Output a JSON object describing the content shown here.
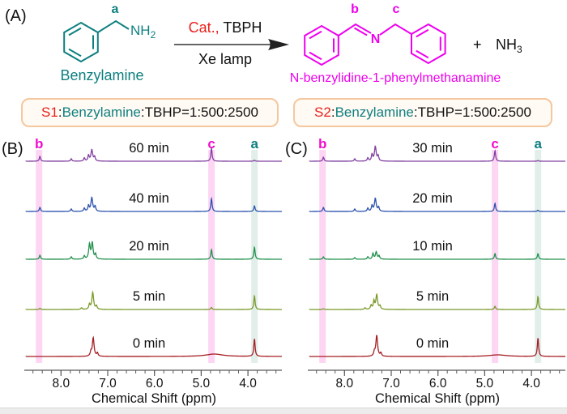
{
  "panel_a": {
    "label": "(A)",
    "reactant": {
      "proton_label": "a",
      "amine_main": "NH",
      "amine_sub": "2",
      "name": "Benzylamine"
    },
    "arrow": {
      "catalyst": "Cat.,",
      "reagent": " TBPH",
      "condition": "Xe lamp"
    },
    "product": {
      "label_b": "b",
      "label_c": "c",
      "nitrogen": "N",
      "name": "N-benzylidine-1-phenylmethanamine"
    },
    "byproduct": {
      "plus": "+",
      "formula_main": "NH",
      "formula_sub": "3"
    }
  },
  "legend_boxes": [
    {
      "sample": "S1",
      "colon": ":",
      "reagent": "Benzylamine",
      "ratio": " :TBHP=1:500:2500"
    },
    {
      "sample": "S2",
      "colon": ":",
      "reagent": "Benzylamine",
      "ratio": " :TBHP=1:500:2500"
    }
  ],
  "colors": {
    "red": "#e8211d",
    "teal": "#0e7f80",
    "magenta": "#ee00ee",
    "marker_magenta": "#f20ccb",
    "band_pink": "#f589dd",
    "band_teal": "#a8cdc3",
    "box_border": "#f5c79e",
    "box_fill": "#fffaf3",
    "axis": "#595959"
  },
  "chart_data": [
    {
      "type": "line",
      "panel_label": "(B)",
      "xlabel": "Chemical Shift (ppm)",
      "x_ticks": [
        8.0,
        7.0,
        6.0,
        5.0,
        4.0
      ],
      "x_range_ppm": [
        8.75,
        3.27
      ],
      "x_axis_reversed": true,
      "grid": false,
      "legend_position": "none",
      "marker_columns": [
        {
          "label": "b",
          "ppm": 8.47,
          "color": "#f20ccb",
          "band": "#f589dd"
        },
        {
          "label": "c",
          "ppm": 4.78,
          "color": "#f20ccb",
          "band": "#f589dd"
        },
        {
          "label": "a",
          "ppm": 3.86,
          "color": "#0e7f80",
          "band": "#a8cdc3"
        }
      ],
      "series": [
        {
          "name": "60 min",
          "color": "#8040a0",
          "peaks": [
            [
              8.45,
              6
            ],
            [
              7.78,
              3
            ],
            [
              7.5,
              4
            ],
            [
              7.41,
              7
            ],
            [
              7.34,
              14,
              0.022
            ],
            [
              7.28,
              5
            ],
            [
              4.78,
              16
            ],
            [
              3.86,
              1.2
            ]
          ]
        },
        {
          "name": "40 min",
          "color": "#2b52ad",
          "peaks": [
            [
              8.45,
              5
            ],
            [
              7.78,
              3
            ],
            [
              7.5,
              4
            ],
            [
              7.41,
              7
            ],
            [
              7.34,
              17,
              0.022
            ],
            [
              7.27,
              6
            ],
            [
              4.78,
              16
            ],
            [
              3.86,
              7
            ]
          ]
        },
        {
          "name": "20 min",
          "color": "#22914d",
          "peaks": [
            [
              8.45,
              5
            ],
            [
              7.78,
              3
            ],
            [
              7.5,
              4
            ],
            [
              7.39,
              18,
              0.02
            ],
            [
              7.33,
              20,
              0.02
            ],
            [
              7.26,
              6
            ],
            [
              4.78,
              12
            ],
            [
              3.86,
              15
            ]
          ]
        },
        {
          "name": "5 min",
          "color": "#7a9929",
          "peaks": [
            [
              8.45,
              1.5
            ],
            [
              7.56,
              2
            ],
            [
              7.39,
              6
            ],
            [
              7.32,
              21,
              0.022
            ],
            [
              7.24,
              4
            ],
            [
              4.78,
              2.5
            ],
            [
              3.86,
              17
            ]
          ]
        },
        {
          "name": "0 min",
          "color": "#a51e23",
          "peaks": [
            [
              7.36,
              5
            ],
            [
              7.31,
              23,
              0.022
            ],
            [
              7.22,
              4
            ],
            [
              4.72,
              3,
              0.22
            ],
            [
              3.86,
              22
            ]
          ]
        }
      ]
    },
    {
      "type": "line",
      "panel_label": "(C)",
      "xlabel": "Chemical Shift (ppm)",
      "x_ticks": [
        8.0,
        7.0,
        6.0,
        5.0,
        4.0
      ],
      "x_range_ppm": [
        8.75,
        3.27
      ],
      "x_axis_reversed": true,
      "grid": false,
      "legend_position": "none",
      "marker_columns": [
        {
          "label": "b",
          "ppm": 8.47,
          "color": "#f20ccb",
          "band": "#f589dd"
        },
        {
          "label": "c",
          "ppm": 4.78,
          "color": "#f20ccb",
          "band": "#f589dd"
        },
        {
          "label": "a",
          "ppm": 3.86,
          "color": "#0e7f80",
          "band": "#a8cdc3"
        }
      ],
      "series": [
        {
          "name": "30 min",
          "color": "#8040a0",
          "peaks": [
            [
              8.45,
              5
            ],
            [
              7.78,
              3
            ],
            [
              7.5,
              4
            ],
            [
              7.41,
              8
            ],
            [
              7.34,
              18,
              0.022
            ],
            [
              7.28,
              6
            ],
            [
              4.78,
              13
            ],
            [
              3.86,
              0.8
            ]
          ]
        },
        {
          "name": "20 min",
          "color": "#2b52ad",
          "peaks": [
            [
              8.45,
              5
            ],
            [
              7.78,
              3
            ],
            [
              7.5,
              4
            ],
            [
              7.41,
              7
            ],
            [
              7.34,
              16,
              0.022
            ],
            [
              7.27,
              5
            ],
            [
              4.78,
              10
            ],
            [
              3.86,
              1.5
            ]
          ]
        },
        {
          "name": "10 min",
          "color": "#22914d",
          "peaks": [
            [
              8.45,
              3
            ],
            [
              7.78,
              2
            ],
            [
              7.5,
              3
            ],
            [
              7.39,
              7
            ],
            [
              7.32,
              9,
              0.02
            ],
            [
              7.26,
              4
            ],
            [
              4.78,
              7
            ],
            [
              3.86,
              7
            ]
          ]
        },
        {
          "name": "5 min",
          "color": "#7a9929",
          "peaks": [
            [
              8.45,
              1
            ],
            [
              7.56,
              2
            ],
            [
              7.43,
              5
            ],
            [
              7.37,
              10
            ],
            [
              7.31,
              18,
              0.022
            ],
            [
              7.24,
              4
            ],
            [
              4.78,
              4
            ],
            [
              3.86,
              16
            ]
          ]
        },
        {
          "name": "0 min",
          "color": "#a51e23",
          "peaks": [
            [
              7.36,
              5
            ],
            [
              7.31,
              26,
              0.022
            ],
            [
              7.22,
              4
            ],
            [
              4.72,
              2,
              0.22
            ],
            [
              3.86,
              23
            ]
          ]
        }
      ]
    }
  ]
}
